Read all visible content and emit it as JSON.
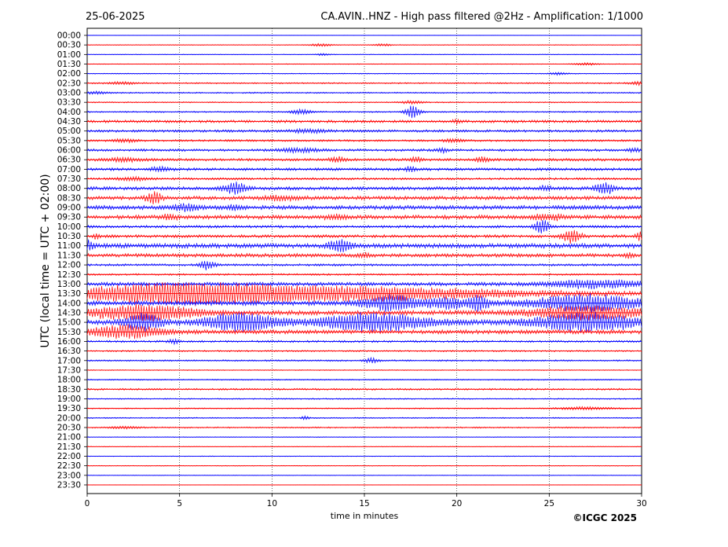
{
  "header": {
    "date": "25-06-2025",
    "title": "CA.AVIN..HNZ - High pass filtered @2Hz - Amplification: 1/1000"
  },
  "footer": {
    "copyright": "©ICGC 2025"
  },
  "chart_data": {
    "type": "line",
    "title": "CA.AVIN..HNZ - High pass filtered @2Hz - Amplification: 1/1000",
    "subtitle": "25-06-2025",
    "xlabel": "time in minutes",
    "ylabel": "UTC (local time = UTC + 02:00)",
    "xlim": [
      0,
      30
    ],
    "x_ticks": [
      "0",
      "5",
      "10",
      "15",
      "20",
      "25",
      "30"
    ],
    "x_tick_values": [
      0,
      5,
      10,
      15,
      20,
      25,
      30
    ],
    "grid": "vertical dotted at 5, 10, 15, 20, 25",
    "row_colors": [
      "#0000ff",
      "#ff0000"
    ],
    "rows": [
      {
        "label": "00:00",
        "base": 0.2,
        "events": []
      },
      {
        "label": "00:30",
        "base": 0.3,
        "events": [
          [
            12.7,
            0.6,
            1.8
          ],
          [
            16.0,
            0.5,
            1.5
          ]
        ]
      },
      {
        "label": "01:00",
        "base": 0.3,
        "events": [
          [
            12.8,
            0.4,
            1.4
          ]
        ]
      },
      {
        "label": "01:30",
        "base": 0.3,
        "events": [
          [
            27.0,
            0.6,
            1.8
          ]
        ]
      },
      {
        "label": "02:00",
        "base": 0.4,
        "events": [
          [
            25.5,
            0.5,
            1.5
          ]
        ]
      },
      {
        "label": "02:30",
        "base": 0.6,
        "events": [
          [
            1.9,
            0.8,
            1.6
          ],
          [
            29.8,
            0.5,
            2
          ]
        ]
      },
      {
        "label": "03:00",
        "base": 0.6,
        "events": [
          [
            0.5,
            0.7,
            1.6
          ]
        ]
      },
      {
        "label": "03:30",
        "base": 0.5,
        "events": [
          [
            17.6,
            0.6,
            2
          ]
        ]
      },
      {
        "label": "04:00",
        "base": 0.6,
        "events": [
          [
            11.6,
            0.6,
            3
          ],
          [
            17.6,
            0.4,
            8
          ]
        ]
      },
      {
        "label": "04:30",
        "base": 1.2,
        "events": [
          [
            20.0,
            0.3,
            1.8
          ]
        ]
      },
      {
        "label": "05:00",
        "base": 1.1,
        "events": [
          [
            12.0,
            1.0,
            2
          ]
        ]
      },
      {
        "label": "05:30",
        "base": 0.9,
        "events": [
          [
            2.0,
            0.8,
            1.8
          ],
          [
            19.8,
            0.6,
            2
          ]
        ]
      },
      {
        "label": "06:00",
        "base": 1.1,
        "events": [
          [
            11.5,
            1.0,
            2.6
          ],
          [
            19.2,
            0.3,
            3
          ],
          [
            29.6,
            0.4,
            2.5
          ]
        ]
      },
      {
        "label": "06:30",
        "base": 1.2,
        "events": [
          [
            2.0,
            0.8,
            2.5
          ],
          [
            13.5,
            0.4,
            3
          ],
          [
            17.8,
            0.3,
            3
          ],
          [
            21.4,
            0.4,
            3
          ]
        ]
      },
      {
        "label": "07:00",
        "base": 1.2,
        "events": [
          [
            4.0,
            0.6,
            2.2
          ],
          [
            17.5,
            0.3,
            3
          ]
        ]
      },
      {
        "label": "07:30",
        "base": 1.0,
        "events": [
          [
            2.5,
            0.8,
            2
          ]
        ]
      },
      {
        "label": "08:00",
        "base": 1.5,
        "events": [
          [
            8.0,
            0.6,
            7
          ],
          [
            24.8,
            0.3,
            3
          ],
          [
            28.0,
            0.5,
            7
          ]
        ]
      },
      {
        "label": "08:30",
        "base": 1.6,
        "events": [
          [
            3.6,
            0.4,
            8
          ],
          [
            10.5,
            1.0,
            2.5
          ]
        ]
      },
      {
        "label": "09:00",
        "base": 1.8,
        "events": [
          [
            5.3,
            0.7,
            4
          ],
          [
            8.0,
            0.4,
            3
          ]
        ]
      },
      {
        "label": "09:30",
        "base": 1.8,
        "events": [
          [
            4.5,
            0.4,
            3
          ],
          [
            13.5,
            0.6,
            2.5
          ],
          [
            24.6,
            0.5,
            3
          ],
          [
            25.4,
            0.3,
            3
          ]
        ]
      },
      {
        "label": "10:00",
        "base": 1.2,
        "events": [
          [
            24.6,
            0.4,
            9
          ]
        ]
      },
      {
        "label": "10:30",
        "base": 1.3,
        "events": [
          [
            0.5,
            0.2,
            3
          ],
          [
            26.2,
            0.5,
            9
          ],
          [
            29.9,
            0.2,
            5
          ]
        ]
      },
      {
        "label": "11:00",
        "base": 2.0,
        "events": [
          [
            0.1,
            0.3,
            6
          ],
          [
            13.7,
            0.6,
            7
          ]
        ]
      },
      {
        "label": "11:30",
        "base": 1.6,
        "events": [
          [
            15.0,
            0.3,
            3
          ],
          [
            29.3,
            0.3,
            3
          ]
        ]
      },
      {
        "label": "12:00",
        "base": 1.0,
        "events": [
          [
            6.5,
            0.4,
            6
          ]
        ]
      },
      {
        "label": "12:30",
        "base": 0.8,
        "events": []
      },
      {
        "label": "13:00",
        "base": 1.6,
        "events": [
          [
            27.5,
            2.5,
            5
          ]
        ]
      },
      {
        "label": "13:30",
        "base": 2.0,
        "events": [
          [
            5.0,
            6.0,
            12
          ],
          [
            15.0,
            8.0,
            7
          ]
        ]
      },
      {
        "label": "14:00",
        "base": 2.0,
        "events": [
          [
            16.5,
            1.5,
            10
          ],
          [
            19.5,
            1.0,
            7
          ],
          [
            21.2,
            0.5,
            10
          ],
          [
            27.0,
            3.0,
            10
          ]
        ]
      },
      {
        "label": "14:30",
        "base": 2.0,
        "events": [
          [
            3.0,
            3.0,
            9
          ],
          [
            27.0,
            3.0,
            8
          ]
        ]
      },
      {
        "label": "15:00",
        "base": 2.0,
        "events": [
          [
            3.0,
            1.0,
            10
          ],
          [
            8.3,
            2.0,
            11
          ],
          [
            15.5,
            3.0,
            11
          ],
          [
            27.0,
            3.0,
            11
          ]
        ]
      },
      {
        "label": "15:30",
        "base": 1.8,
        "events": [
          [
            2.0,
            2.0,
            8
          ]
        ]
      },
      {
        "label": "16:00",
        "base": 0.9,
        "events": [
          [
            4.7,
            0.3,
            2.5
          ]
        ]
      },
      {
        "label": "16:30",
        "base": 0.7,
        "events": []
      },
      {
        "label": "17:00",
        "base": 0.7,
        "events": [
          [
            15.4,
            0.4,
            3
          ]
        ]
      },
      {
        "label": "17:30",
        "base": 0.4,
        "events": []
      },
      {
        "label": "18:00",
        "base": 0.5,
        "events": []
      },
      {
        "label": "18:30",
        "base": 0.8,
        "events": []
      },
      {
        "label": "19:00",
        "base": 0.5,
        "events": []
      },
      {
        "label": "19:30",
        "base": 0.5,
        "events": [
          [
            27.0,
            1.5,
            1.8
          ]
        ]
      },
      {
        "label": "20:00",
        "base": 0.5,
        "events": [
          [
            11.8,
            0.2,
            3
          ]
        ]
      },
      {
        "label": "20:30",
        "base": 0.6,
        "events": [
          [
            2.0,
            0.8,
            1.5
          ]
        ]
      },
      {
        "label": "21:00",
        "base": 0.3,
        "events": []
      },
      {
        "label": "21:30",
        "base": 0.3,
        "events": []
      },
      {
        "label": "22:00",
        "base": 0.3,
        "events": []
      },
      {
        "label": "22:30",
        "base": 0.3,
        "events": []
      },
      {
        "label": "23:00",
        "base": 0.2,
        "events": []
      },
      {
        "label": "23:30",
        "base": 0.2,
        "events": []
      }
    ]
  }
}
